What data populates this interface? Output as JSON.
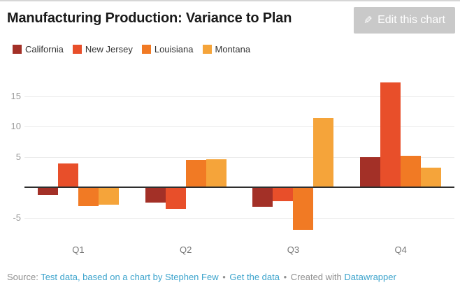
{
  "header": {
    "title": "Manufacturing Production: Variance to Plan",
    "edit_button": {
      "label": "Edit this chart",
      "icon": "pen-icon"
    }
  },
  "chart_data": {
    "type": "bar",
    "title": "Manufacturing Production: Variance to Plan",
    "categories": [
      "Q1",
      "Q2",
      "Q3",
      "Q4"
    ],
    "series": [
      {
        "name": "California",
        "color": "#A33027",
        "values": [
          -1.1,
          -2.4,
          -3.1,
          4.9
        ]
      },
      {
        "name": "New Jersey",
        "color": "#E84F2A",
        "values": [
          3.9,
          -3.4,
          -2.2,
          17.2
        ]
      },
      {
        "name": "Louisiana",
        "color": "#F17A24",
        "values": [
          -3.0,
          4.5,
          -6.9,
          5.2
        ]
      },
      {
        "name": "Montana",
        "color": "#F5A43A",
        "values": [
          -2.8,
          4.6,
          11.4,
          3.2
        ]
      }
    ],
    "y_ticks": [
      -5,
      5,
      10,
      15
    ],
    "baseline": 0,
    "ylim": [
      -7.7,
      19.1
    ],
    "grid": true,
    "legend_position": "top"
  },
  "footer": {
    "source_label": "Source:",
    "source_link": "Test data, based on a chart by Stephen Few",
    "separator": "•",
    "data_link": "Get the data",
    "created_with": "Created with",
    "tool_link": "Datawrapper"
  },
  "colors": {
    "link": "#3BA3CC",
    "muted_text": "#8f8f8f",
    "grid": "#ebebeb",
    "baseline": "#2e2e2e",
    "button_bg": "#c9c9c9",
    "button_text": "#ffffff"
  }
}
